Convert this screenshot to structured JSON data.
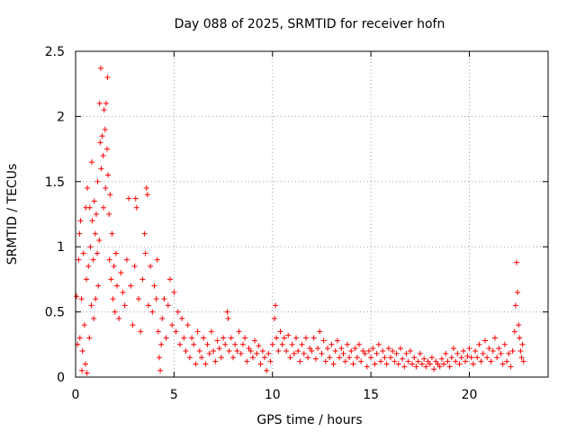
{
  "chart_data": {
    "type": "scatter",
    "title": "Day 088 of 2025, SRMTID for receiver hofn",
    "xlabel": "GPS time / hours",
    "ylabel": "SRMTID / TECUs",
    "xlim": [
      0,
      24
    ],
    "ylim": [
      0,
      2.5
    ],
    "xticks": [
      0,
      5,
      10,
      15,
      20
    ],
    "xtick_labels": [
      "0",
      "5",
      "10",
      "15",
      "20"
    ],
    "yticks": [
      0,
      0.5,
      1,
      1.5,
      2,
      2.5
    ],
    "ytick_labels": [
      "0",
      "0.5",
      "1",
      "1.5",
      "2",
      "2.5"
    ],
    "grid": true,
    "marker": "plus",
    "color": "#ff0000",
    "series": [
      {
        "name": "SRMTID",
        "points": [
          [
            0.05,
            0.62
          ],
          [
            0.1,
            0.25
          ],
          [
            0.15,
            0.9
          ],
          [
            0.2,
            1.1
          ],
          [
            0.22,
            0.3
          ],
          [
            0.25,
            1.2
          ],
          [
            0.3,
            0.6
          ],
          [
            0.32,
            0.05
          ],
          [
            0.35,
            0.2
          ],
          [
            0.4,
            0.95
          ],
          [
            0.45,
            0.4
          ],
          [
            0.5,
            0.1
          ],
          [
            0.52,
            1.3
          ],
          [
            0.55,
            0.75
          ],
          [
            0.58,
            0.03
          ],
          [
            0.6,
            1.45
          ],
          [
            0.65,
            0.85
          ],
          [
            0.7,
            0.3
          ],
          [
            0.72,
            1.3
          ],
          [
            0.75,
            1.0
          ],
          [
            0.8,
            0.55
          ],
          [
            0.82,
            1.65
          ],
          [
            0.85,
            1.2
          ],
          [
            0.9,
            0.9
          ],
          [
            0.92,
            0.45
          ],
          [
            0.95,
            1.35
          ],
          [
            1.0,
            1.1
          ],
          [
            1.02,
            0.6
          ],
          [
            1.05,
            1.25
          ],
          [
            1.1,
            0.95
          ],
          [
            1.12,
            1.5
          ],
          [
            1.15,
            0.7
          ],
          [
            1.2,
            1.05
          ],
          [
            1.22,
            2.1
          ],
          [
            1.25,
            1.8
          ],
          [
            1.28,
            2.37
          ],
          [
            1.3,
            1.6
          ],
          [
            1.35,
            1.85
          ],
          [
            1.4,
            1.7
          ],
          [
            1.42,
            1.3
          ],
          [
            1.45,
            2.05
          ],
          [
            1.5,
            1.9
          ],
          [
            1.52,
            1.45
          ],
          [
            1.55,
            2.1
          ],
          [
            1.6,
            1.75
          ],
          [
            1.62,
            2.3
          ],
          [
            1.65,
            1.55
          ],
          [
            1.7,
            1.25
          ],
          [
            1.72,
            0.9
          ],
          [
            1.75,
            1.4
          ],
          [
            1.8,
            0.75
          ],
          [
            1.85,
            1.1
          ],
          [
            1.9,
            0.6
          ],
          [
            1.95,
            0.85
          ],
          [
            2.0,
            0.5
          ],
          [
            2.05,
            0.95
          ],
          [
            2.1,
            0.7
          ],
          [
            2.2,
            0.45
          ],
          [
            2.3,
            0.8
          ],
          [
            2.4,
            0.65
          ],
          [
            2.5,
            0.55
          ],
          [
            2.6,
            0.9
          ],
          [
            2.7,
            1.37
          ],
          [
            2.8,
            0.7
          ],
          [
            2.9,
            0.4
          ],
          [
            3.0,
            0.85
          ],
          [
            3.05,
            1.37
          ],
          [
            3.1,
            1.3
          ],
          [
            3.2,
            0.6
          ],
          [
            3.3,
            0.35
          ],
          [
            3.4,
            0.75
          ],
          [
            3.5,
            1.1
          ],
          [
            3.55,
            0.95
          ],
          [
            3.6,
            1.45
          ],
          [
            3.65,
            1.4
          ],
          [
            3.7,
            0.55
          ],
          [
            3.8,
            0.85
          ],
          [
            3.9,
            0.5
          ],
          [
            4.0,
            0.7
          ],
          [
            4.1,
            0.6
          ],
          [
            4.15,
            0.9
          ],
          [
            4.2,
            0.35
          ],
          [
            4.25,
            0.15
          ],
          [
            4.3,
            0.05
          ],
          [
            4.35,
            0.25
          ],
          [
            4.4,
            0.45
          ],
          [
            4.5,
            0.6
          ],
          [
            4.6,
            0.3
          ],
          [
            4.7,
            0.55
          ],
          [
            4.8,
            0.75
          ],
          [
            4.9,
            0.4
          ],
          [
            5.0,
            0.65
          ],
          [
            5.1,
            0.35
          ],
          [
            5.2,
            0.5
          ],
          [
            5.3,
            0.25
          ],
          [
            5.4,
            0.45
          ],
          [
            5.5,
            0.3
          ],
          [
            5.6,
            0.2
          ],
          [
            5.7,
            0.4
          ],
          [
            5.8,
            0.15
          ],
          [
            5.9,
            0.3
          ],
          [
            6.0,
            0.25
          ],
          [
            6.1,
            0.1
          ],
          [
            6.2,
            0.35
          ],
          [
            6.3,
            0.2
          ],
          [
            6.4,
            0.15
          ],
          [
            6.5,
            0.3
          ],
          [
            6.6,
            0.1
          ],
          [
            6.7,
            0.25
          ],
          [
            6.8,
            0.18
          ],
          [
            6.9,
            0.35
          ],
          [
            7.0,
            0.2
          ],
          [
            7.1,
            0.12
          ],
          [
            7.2,
            0.28
          ],
          [
            7.3,
            0.22
          ],
          [
            7.4,
            0.15
          ],
          [
            7.5,
            0.3
          ],
          [
            7.6,
            0.25
          ],
          [
            7.7,
            0.5
          ],
          [
            7.75,
            0.45
          ],
          [
            7.8,
            0.2
          ],
          [
            7.9,
            0.3
          ],
          [
            8.0,
            0.15
          ],
          [
            8.1,
            0.25
          ],
          [
            8.2,
            0.2
          ],
          [
            8.3,
            0.35
          ],
          [
            8.4,
            0.18
          ],
          [
            8.5,
            0.25
          ],
          [
            8.6,
            0.3
          ],
          [
            8.7,
            0.12
          ],
          [
            8.8,
            0.22
          ],
          [
            8.9,
            0.2
          ],
          [
            9.0,
            0.15
          ],
          [
            9.1,
            0.28
          ],
          [
            9.2,
            0.18
          ],
          [
            9.3,
            0.24
          ],
          [
            9.4,
            0.1
          ],
          [
            9.5,
            0.2
          ],
          [
            9.6,
            0.15
          ],
          [
            9.7,
            0.05
          ],
          [
            9.8,
            0.18
          ],
          [
            9.9,
            0.12
          ],
          [
            10.0,
            0.25
          ],
          [
            10.1,
            0.45
          ],
          [
            10.15,
            0.55
          ],
          [
            10.2,
            0.3
          ],
          [
            10.3,
            0.2
          ],
          [
            10.4,
            0.35
          ],
          [
            10.5,
            0.25
          ],
          [
            10.6,
            0.3
          ],
          [
            10.7,
            0.2
          ],
          [
            10.8,
            0.32
          ],
          [
            10.9,
            0.15
          ],
          [
            11.0,
            0.25
          ],
          [
            11.1,
            0.18
          ],
          [
            11.2,
            0.3
          ],
          [
            11.3,
            0.2
          ],
          [
            11.4,
            0.12
          ],
          [
            11.5,
            0.25
          ],
          [
            11.6,
            0.18
          ],
          [
            11.7,
            0.3
          ],
          [
            11.8,
            0.15
          ],
          [
            11.9,
            0.22
          ],
          [
            12.0,
            0.2
          ],
          [
            12.1,
            0.3
          ],
          [
            12.2,
            0.14
          ],
          [
            12.3,
            0.22
          ],
          [
            12.4,
            0.35
          ],
          [
            12.5,
            0.18
          ],
          [
            12.6,
            0.28
          ],
          [
            12.7,
            0.12
          ],
          [
            12.8,
            0.22
          ],
          [
            12.9,
            0.15
          ],
          [
            13.0,
            0.25
          ],
          [
            13.1,
            0.1
          ],
          [
            13.2,
            0.2
          ],
          [
            13.3,
            0.28
          ],
          [
            13.4,
            0.15
          ],
          [
            13.5,
            0.22
          ],
          [
            13.6,
            0.18
          ],
          [
            13.7,
            0.12
          ],
          [
            13.8,
            0.25
          ],
          [
            13.9,
            0.15
          ],
          [
            14.0,
            0.2
          ],
          [
            14.1,
            0.1
          ],
          [
            14.2,
            0.22
          ],
          [
            14.3,
            0.15
          ],
          [
            14.4,
            0.25
          ],
          [
            14.5,
            0.12
          ],
          [
            14.6,
            0.2
          ],
          [
            14.7,
            0.18
          ],
          [
            14.8,
            0.08
          ],
          [
            14.9,
            0.2
          ],
          [
            15.0,
            0.15
          ],
          [
            15.1,
            0.22
          ],
          [
            15.2,
            0.1
          ],
          [
            15.3,
            0.18
          ],
          [
            15.4,
            0.25
          ],
          [
            15.5,
            0.12
          ],
          [
            15.6,
            0.2
          ],
          [
            15.7,
            0.15
          ],
          [
            15.8,
            0.1
          ],
          [
            15.9,
            0.22
          ],
          [
            16.0,
            0.15
          ],
          [
            16.1,
            0.2
          ],
          [
            16.2,
            0.12
          ],
          [
            16.3,
            0.18
          ],
          [
            16.4,
            0.1
          ],
          [
            16.5,
            0.22
          ],
          [
            16.6,
            0.14
          ],
          [
            16.7,
            0.08
          ],
          [
            16.8,
            0.18
          ],
          [
            16.9,
            0.12
          ],
          [
            17.0,
            0.2
          ],
          [
            17.1,
            0.1
          ],
          [
            17.2,
            0.15
          ],
          [
            17.3,
            0.08
          ],
          [
            17.4,
            0.12
          ],
          [
            17.5,
            0.18
          ],
          [
            17.6,
            0.1
          ],
          [
            17.7,
            0.14
          ],
          [
            17.8,
            0.08
          ],
          [
            17.9,
            0.12
          ],
          [
            18.0,
            0.1
          ],
          [
            18.1,
            0.15
          ],
          [
            18.2,
            0.06
          ],
          [
            18.3,
            0.12
          ],
          [
            18.4,
            0.1
          ],
          [
            18.5,
            0.08
          ],
          [
            18.6,
            0.14
          ],
          [
            18.7,
            0.1
          ],
          [
            18.8,
            0.18
          ],
          [
            18.9,
            0.12
          ],
          [
            19.0,
            0.08
          ],
          [
            19.1,
            0.15
          ],
          [
            19.2,
            0.22
          ],
          [
            19.3,
            0.12
          ],
          [
            19.4,
            0.18
          ],
          [
            19.5,
            0.1
          ],
          [
            19.6,
            0.15
          ],
          [
            19.7,
            0.2
          ],
          [
            19.8,
            0.12
          ],
          [
            19.9,
            0.16
          ],
          [
            20.0,
            0.22
          ],
          [
            20.1,
            0.15
          ],
          [
            20.2,
            0.1
          ],
          [
            20.3,
            0.2
          ],
          [
            20.4,
            0.15
          ],
          [
            20.5,
            0.25
          ],
          [
            20.6,
            0.12
          ],
          [
            20.7,
            0.18
          ],
          [
            20.8,
            0.28
          ],
          [
            20.9,
            0.15
          ],
          [
            21.0,
            0.22
          ],
          [
            21.1,
            0.12
          ],
          [
            21.2,
            0.2
          ],
          [
            21.3,
            0.3
          ],
          [
            21.4,
            0.15
          ],
          [
            21.5,
            0.22
          ],
          [
            21.6,
            0.18
          ],
          [
            21.7,
            0.1
          ],
          [
            21.8,
            0.25
          ],
          [
            21.9,
            0.12
          ],
          [
            22.0,
            0.18
          ],
          [
            22.1,
            0.08
          ],
          [
            22.2,
            0.2
          ],
          [
            22.3,
            0.35
          ],
          [
            22.35,
            0.55
          ],
          [
            22.4,
            0.88
          ],
          [
            22.45,
            0.65
          ],
          [
            22.5,
            0.4
          ],
          [
            22.55,
            0.3
          ],
          [
            22.6,
            0.2
          ],
          [
            22.65,
            0.15
          ],
          [
            22.7,
            0.25
          ],
          [
            22.75,
            0.12
          ]
        ]
      }
    ]
  }
}
